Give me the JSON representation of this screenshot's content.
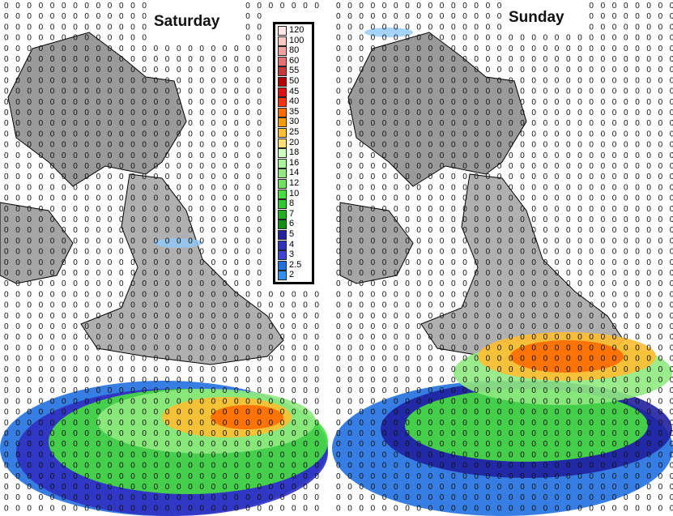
{
  "panels": [
    {
      "label": "Saturday"
    },
    {
      "label": "Sunday"
    }
  ],
  "grid_default_value": "0",
  "legend": {
    "labels": [
      "120",
      "100",
      "80",
      "60",
      "55",
      "50",
      "45",
      "40",
      "35",
      "30",
      "25",
      "20",
      "18",
      "16",
      "14",
      "12",
      "10",
      "8",
      "7",
      "6",
      "5",
      "4",
      "3",
      "2.5",
      "2"
    ],
    "colors": [
      "#ffe6e6",
      "#ffc8c8",
      "#f8a0a0",
      "#e87070",
      "#c83838",
      "#b80000",
      "#e01010",
      "#ff3010",
      "#ff6a00",
      "#ff9a00",
      "#ffbe30",
      "#ffe070",
      "#ccffbb",
      "#aaf29a",
      "#90ea80",
      "#70e060",
      "#48e040",
      "#30c830",
      "#20b020",
      "#109010",
      "#2020a0",
      "#3030c0",
      "#4040d8",
      "#2070e0",
      "#3090f0"
    ]
  },
  "colors": {
    "land": "#9a9a9a",
    "coast": "#000000",
    "background": "#ffffff"
  }
}
